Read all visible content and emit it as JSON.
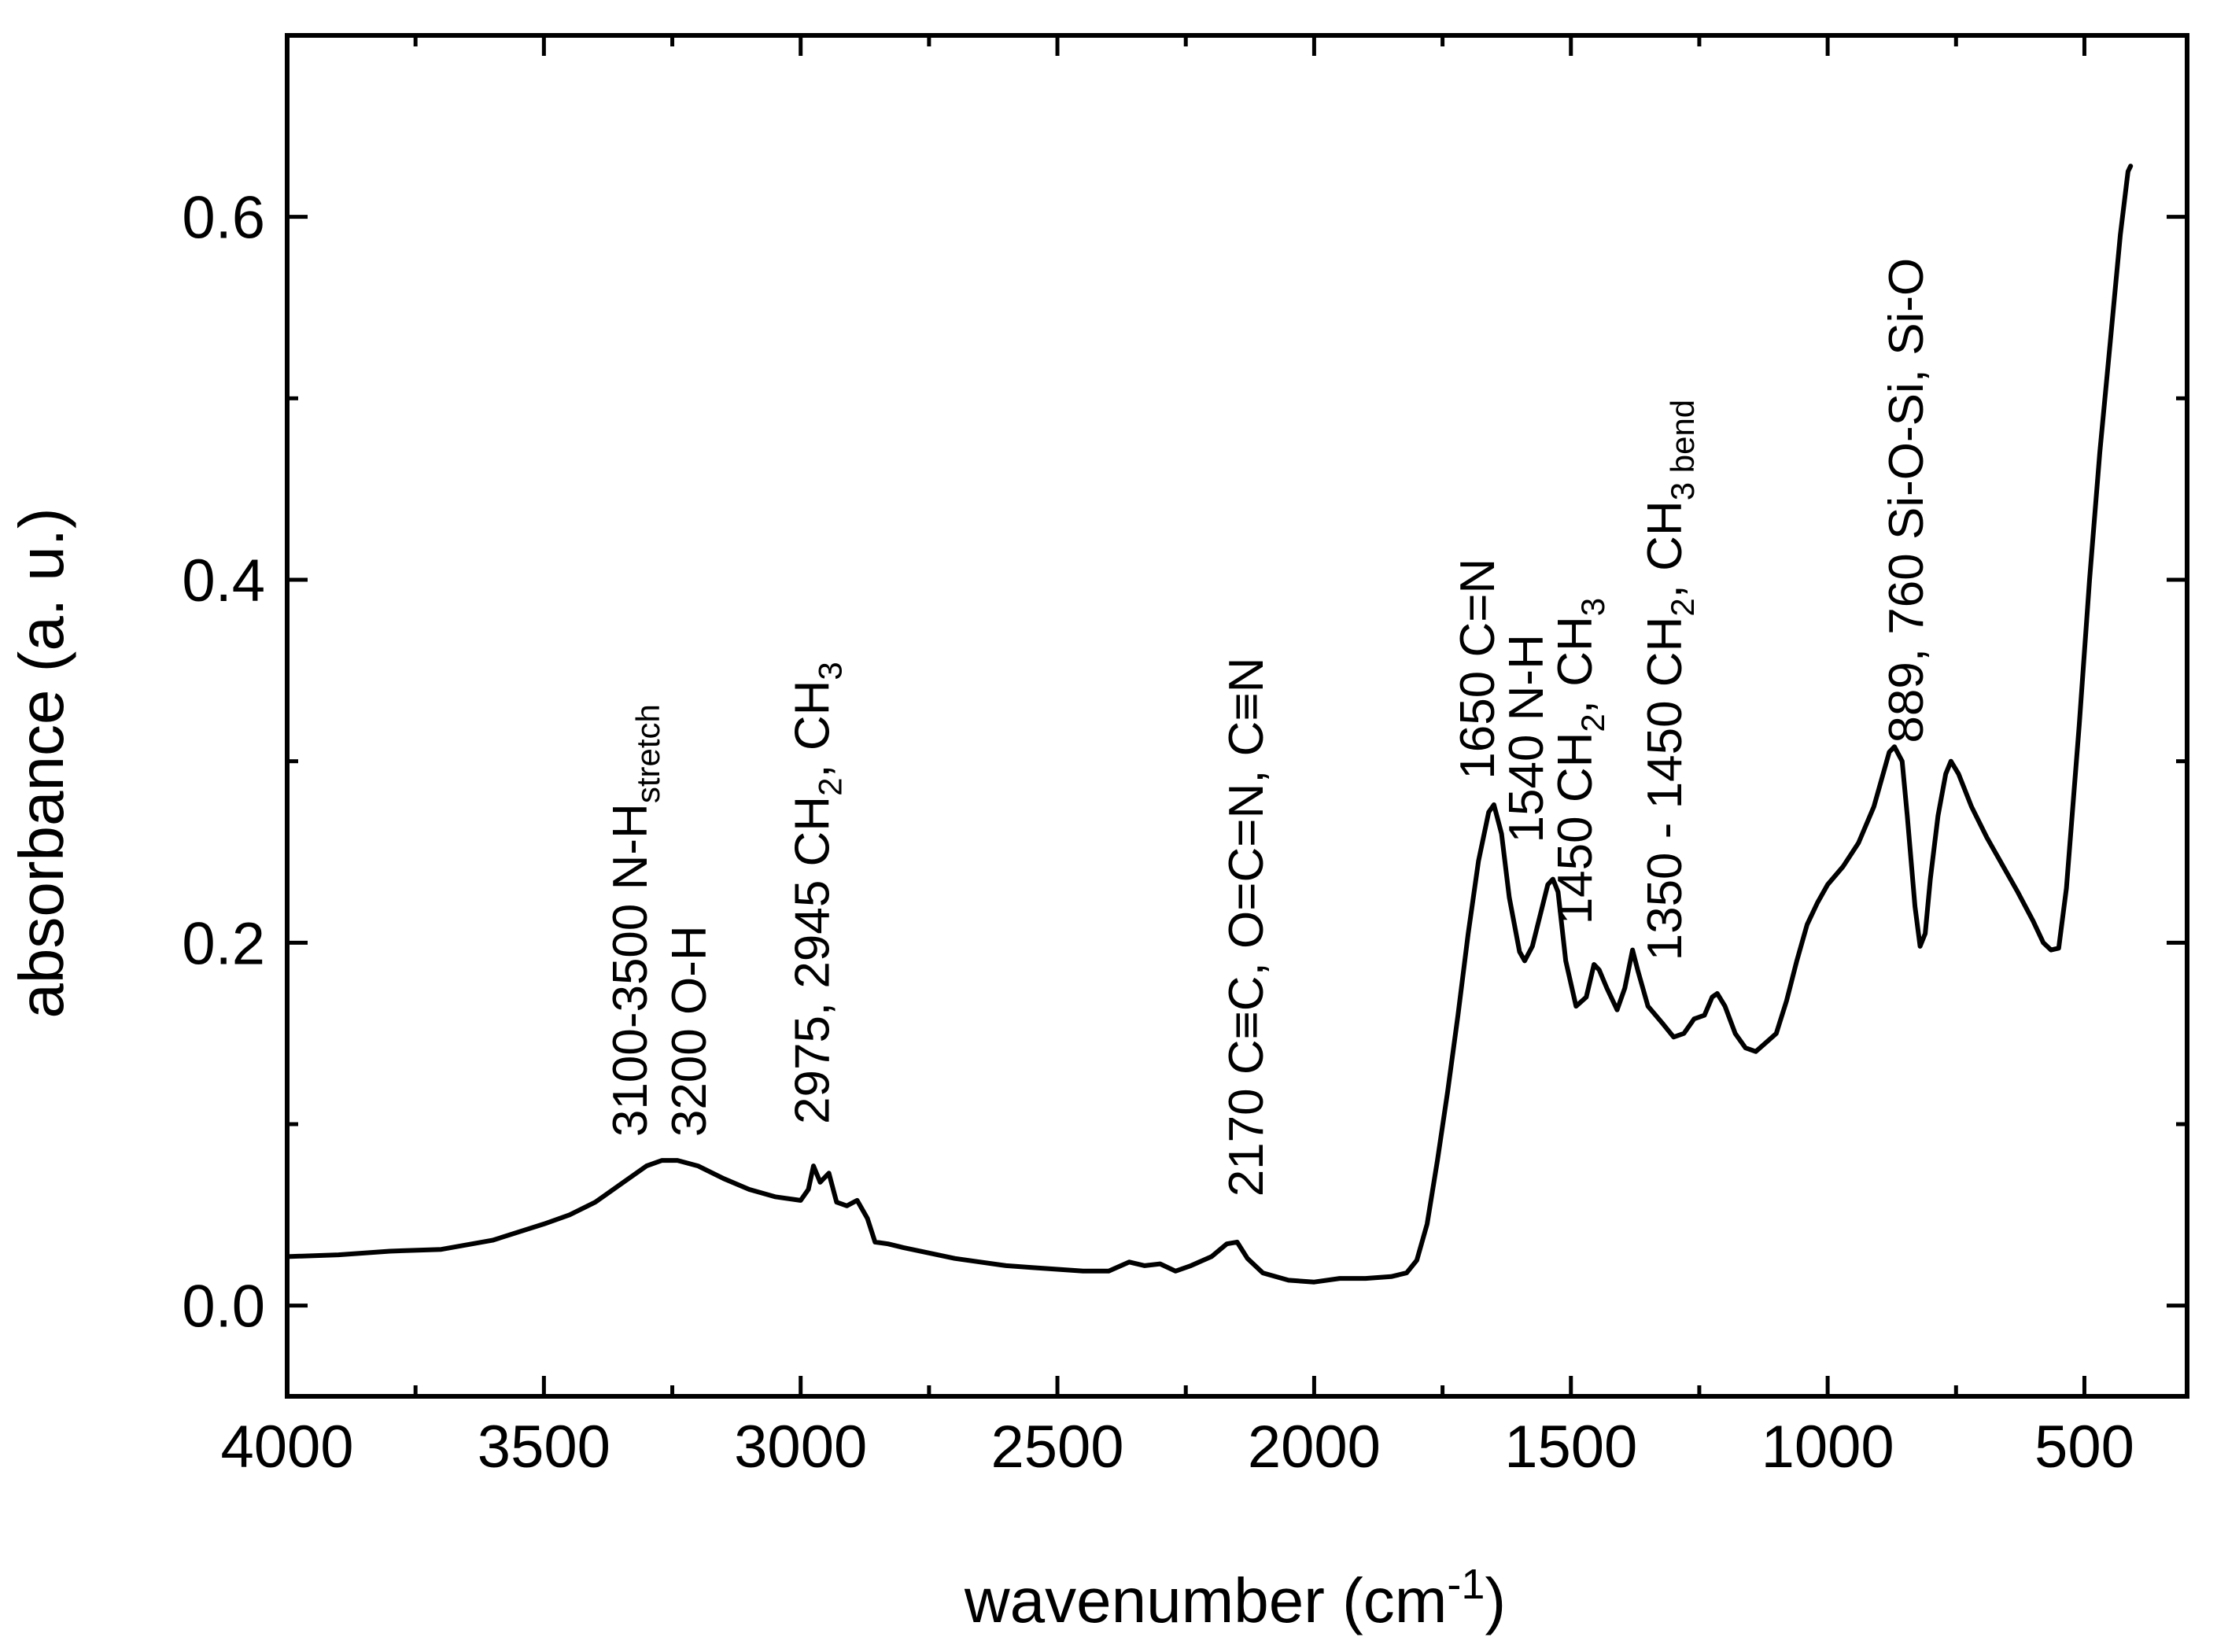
{
  "chart_data": {
    "type": "line",
    "title": "",
    "xlabel": "wavenumber (cm",
    "xlabel_superscript": "-1",
    "xlabel_suffix": ")",
    "ylabel": "absorbance (a. u.)",
    "xlim": [
      4000,
      300
    ],
    "ylim": [
      -0.05,
      0.7
    ],
    "x_reversed": true,
    "x_major_ticks": [
      4000,
      3500,
      3000,
      2500,
      2000,
      1500,
      1000,
      500
    ],
    "x_tick_labels": [
      "4000",
      "3500",
      "3000",
      "2500",
      "2000",
      "1500",
      "1000",
      "500"
    ],
    "x_minor_ticks": [
      3750,
      3250,
      2750,
      2250,
      1750,
      1250,
      750
    ],
    "y_major_ticks": [
      0.0,
      0.2,
      0.4,
      0.6
    ],
    "y_tick_labels": [
      "0.0",
      "0.2",
      "0.4",
      "0.6"
    ],
    "y_minor_ticks": [
      0.1,
      0.3,
      0.5
    ],
    "grid": false,
    "legend": "none",
    "series": [
      {
        "name": "absorbance",
        "points": [
          [
            4000,
            0.027
          ],
          [
            3900,
            0.028
          ],
          [
            3800,
            0.03
          ],
          [
            3700,
            0.031
          ],
          [
            3600,
            0.036
          ],
          [
            3500,
            0.045
          ],
          [
            3450,
            0.05
          ],
          [
            3400,
            0.057
          ],
          [
            3350,
            0.067
          ],
          [
            3300,
            0.077
          ],
          [
            3270,
            0.08
          ],
          [
            3240,
            0.08
          ],
          [
            3200,
            0.077
          ],
          [
            3150,
            0.07
          ],
          [
            3100,
            0.064
          ],
          [
            3050,
            0.06
          ],
          [
            3000,
            0.058
          ],
          [
            2985,
            0.064
          ],
          [
            2975,
            0.077
          ],
          [
            2962,
            0.068
          ],
          [
            2945,
            0.073
          ],
          [
            2930,
            0.057
          ],
          [
            2910,
            0.055
          ],
          [
            2890,
            0.058
          ],
          [
            2870,
            0.048
          ],
          [
            2855,
            0.035
          ],
          [
            2830,
            0.034
          ],
          [
            2800,
            0.032
          ],
          [
            2750,
            0.029
          ],
          [
            2700,
            0.026
          ],
          [
            2650,
            0.024
          ],
          [
            2600,
            0.022
          ],
          [
            2550,
            0.021
          ],
          [
            2500,
            0.02
          ],
          [
            2450,
            0.019
          ],
          [
            2400,
            0.019
          ],
          [
            2360,
            0.024
          ],
          [
            2330,
            0.022
          ],
          [
            2300,
            0.023
          ],
          [
            2270,
            0.019
          ],
          [
            2240,
            0.022
          ],
          [
            2200,
            0.027
          ],
          [
            2170,
            0.034
          ],
          [
            2150,
            0.035
          ],
          [
            2130,
            0.026
          ],
          [
            2100,
            0.018
          ],
          [
            2050,
            0.014
          ],
          [
            2000,
            0.013
          ],
          [
            1950,
            0.015
          ],
          [
            1900,
            0.015
          ],
          [
            1850,
            0.016
          ],
          [
            1820,
            0.018
          ],
          [
            1800,
            0.025
          ],
          [
            1780,
            0.045
          ],
          [
            1760,
            0.08
          ],
          [
            1740,
            0.118
          ],
          [
            1720,
            0.16
          ],
          [
            1700,
            0.205
          ],
          [
            1680,
            0.245
          ],
          [
            1660,
            0.272
          ],
          [
            1650,
            0.276
          ],
          [
            1635,
            0.26
          ],
          [
            1620,
            0.225
          ],
          [
            1600,
            0.195
          ],
          [
            1590,
            0.19
          ],
          [
            1575,
            0.198
          ],
          [
            1560,
            0.215
          ],
          [
            1545,
            0.232
          ],
          [
            1535,
            0.235
          ],
          [
            1525,
            0.228
          ],
          [
            1510,
            0.19
          ],
          [
            1490,
            0.165
          ],
          [
            1470,
            0.17
          ],
          [
            1455,
            0.188
          ],
          [
            1445,
            0.185
          ],
          [
            1430,
            0.175
          ],
          [
            1410,
            0.163
          ],
          [
            1395,
            0.175
          ],
          [
            1380,
            0.196
          ],
          [
            1370,
            0.185
          ],
          [
            1350,
            0.165
          ],
          [
            1320,
            0.155
          ],
          [
            1300,
            0.148
          ],
          [
            1280,
            0.15
          ],
          [
            1260,
            0.158
          ],
          [
            1240,
            0.16
          ],
          [
            1225,
            0.17
          ],
          [
            1215,
            0.172
          ],
          [
            1200,
            0.165
          ],
          [
            1180,
            0.15
          ],
          [
            1160,
            0.142
          ],
          [
            1140,
            0.14
          ],
          [
            1120,
            0.145
          ],
          [
            1100,
            0.15
          ],
          [
            1080,
            0.168
          ],
          [
            1060,
            0.19
          ],
          [
            1040,
            0.21
          ],
          [
            1020,
            0.222
          ],
          [
            1000,
            0.232
          ],
          [
            970,
            0.242
          ],
          [
            940,
            0.255
          ],
          [
            910,
            0.275
          ],
          [
            890,
            0.295
          ],
          [
            880,
            0.305
          ],
          [
            870,
            0.308
          ],
          [
            855,
            0.3
          ],
          [
            845,
            0.27
          ],
          [
            830,
            0.22
          ],
          [
            820,
            0.198
          ],
          [
            810,
            0.205
          ],
          [
            800,
            0.235
          ],
          [
            785,
            0.27
          ],
          [
            770,
            0.293
          ],
          [
            760,
            0.3
          ],
          [
            745,
            0.293
          ],
          [
            720,
            0.275
          ],
          [
            690,
            0.258
          ],
          [
            660,
            0.243
          ],
          [
            630,
            0.228
          ],
          [
            600,
            0.212
          ],
          [
            580,
            0.2
          ],
          [
            565,
            0.196
          ],
          [
            550,
            0.197
          ],
          [
            535,
            0.23
          ],
          [
            510,
            0.32
          ],
          [
            490,
            0.4
          ],
          [
            470,
            0.47
          ],
          [
            450,
            0.53
          ],
          [
            430,
            0.59
          ],
          [
            415,
            0.625
          ],
          [
            410,
            0.628
          ]
        ]
      }
    ],
    "annotations": [
      {
        "id": "a1",
        "x": 3300,
        "y": 0.093,
        "text": "3100-3500 N-H",
        "sub": "stretch",
        "sub2": "",
        "tail": ""
      },
      {
        "id": "a2",
        "x": 3185,
        "y": 0.093,
        "text": "3200 O-H",
        "sub": "",
        "sub2": "",
        "tail": ""
      },
      {
        "id": "a3",
        "x": 2945,
        "y": 0.1,
        "text": "2975, 2945 CH",
        "sub": "2",
        "mid": ", CH",
        "sub2": "3",
        "tail": ""
      },
      {
        "id": "a4",
        "x": 2100,
        "y": 0.06,
        "text": "2170  C≡C, O=C=N, C≡N",
        "sub": "",
        "sub2": "",
        "tail": ""
      },
      {
        "id": "a5",
        "x": 1650,
        "y": 0.29,
        "text": "1650 C=N",
        "sub": "",
        "sub2": "",
        "tail": ""
      },
      {
        "id": "a6",
        "x": 1555,
        "y": 0.255,
        "text": "1540 N-H",
        "sub": "",
        "sub2": "",
        "tail": ""
      },
      {
        "id": "a7",
        "x": 1460,
        "y": 0.21,
        "text": "1450 CH",
        "sub": "2",
        "mid": ", CH",
        "sub2": "3",
        "tail": ""
      },
      {
        "id": "a8",
        "x": 1285,
        "y": 0.19,
        "text": "1350 - 1450 CH",
        "sub": "2",
        "mid": ", CH",
        "sub2": "3 bend",
        "tail": ""
      },
      {
        "id": "a9",
        "x": 815,
        "y": 0.31,
        "text": "889, 760 Si-O-Si, Si-O",
        "sub": "",
        "sub2": "",
        "tail": ""
      }
    ]
  }
}
